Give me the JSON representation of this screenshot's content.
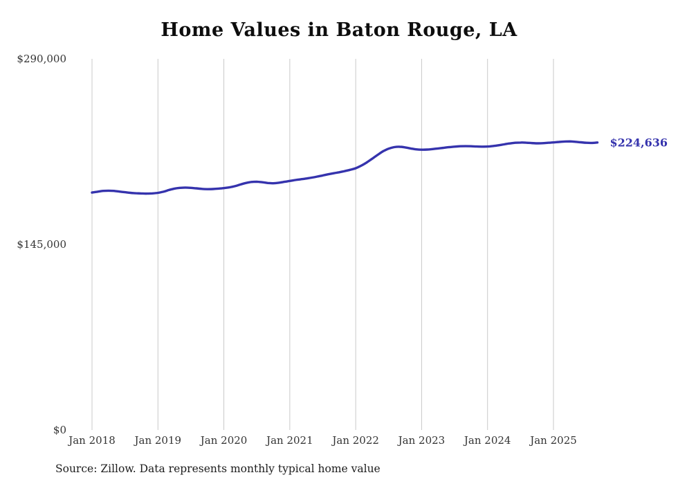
{
  "chart_data": {
    "type": "line",
    "title": "Home Values in Baton Rouge, LA",
    "series": [
      {
        "name": "Typical home value",
        "start_month": "Jan 2018",
        "end_month": "Sep 2025",
        "values": [
          185500,
          186200,
          186800,
          187000,
          186800,
          186300,
          185800,
          185300,
          185000,
          184800,
          184700,
          184900,
          185300,
          186200,
          187500,
          188600,
          189200,
          189400,
          189200,
          188800,
          188400,
          188200,
          188300,
          188600,
          189000,
          189600,
          190500,
          191800,
          193000,
          193800,
          194000,
          193600,
          193000,
          192800,
          193200,
          193900,
          194600,
          195300,
          195900,
          196500,
          197200,
          198000,
          198900,
          199800,
          200600,
          201400,
          202300,
          203300,
          204500,
          206500,
          209000,
          212000,
          215000,
          217800,
          219800,
          221000,
          221300,
          220800,
          220000,
          219300,
          219000,
          219100,
          219500,
          220000,
          220500,
          221000,
          221400,
          221700,
          221800,
          221700,
          221500,
          221400,
          221500,
          221900,
          222500,
          223200,
          223900,
          224400,
          224600,
          224500,
          224200,
          224000,
          224100,
          224400,
          224700,
          225100,
          225400,
          225500,
          225200,
          224800,
          224400,
          224300,
          224636
        ]
      }
    ],
    "x_ticks": [
      "Jan 2018",
      "Jan 2019",
      "Jan 2020",
      "Jan 2021",
      "Jan 2022",
      "Jan 2023",
      "Jan 2024",
      "Jan 2025"
    ],
    "y_ticks": [
      {
        "value": 0,
        "label": "$0"
      },
      {
        "value": 145000,
        "label": "$145,000"
      },
      {
        "value": 290000,
        "label": "$290,000"
      }
    ],
    "ylim": [
      0,
      290000
    ],
    "grid": "vertical-only",
    "legend": "none",
    "line_color": "#3533ad",
    "gridline_color": "#c9c9c9",
    "end_label": "$224,636",
    "source": "Source: Zillow. Data represents monthly typical home value"
  }
}
